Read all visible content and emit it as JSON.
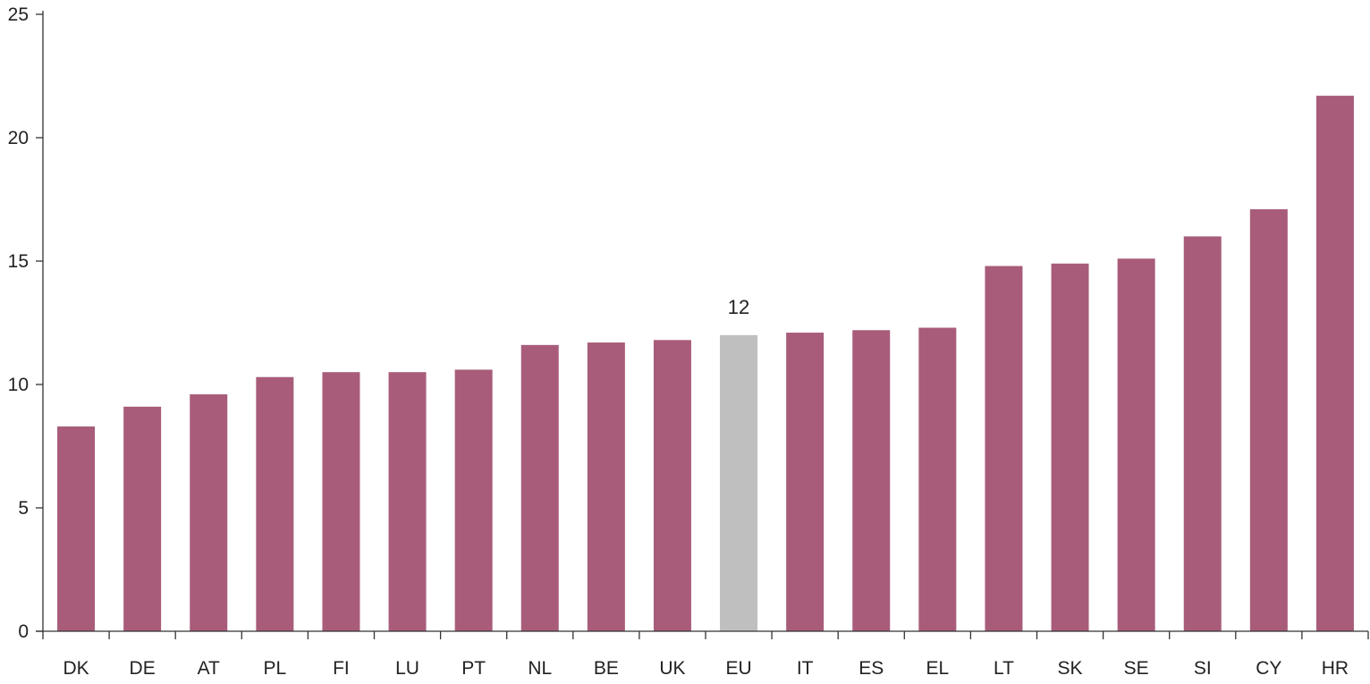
{
  "chart_data": {
    "type": "bar",
    "title": "",
    "xlabel": "",
    "ylabel": "",
    "categories": [
      "DK",
      "DE",
      "AT",
      "PL",
      "FI",
      "LU",
      "PT",
      "NL",
      "BE",
      "UK",
      "EU",
      "IT",
      "ES",
      "EL",
      "LT",
      "SK",
      "SE",
      "SI",
      "CY",
      "HR"
    ],
    "values": [
      8.3,
      9.1,
      9.6,
      10.3,
      10.5,
      10.5,
      10.6,
      11.6,
      11.7,
      11.8,
      12.0,
      12.1,
      12.2,
      12.3,
      14.8,
      14.9,
      15.1,
      16.0,
      17.1,
      21.7
    ],
    "highlight_category": "EU",
    "data_labels": [
      {
        "category": "EU",
        "text": "12"
      }
    ],
    "ylim": [
      0,
      25
    ],
    "yticks": [
      "0",
      "5",
      "10",
      "15",
      "20",
      "25"
    ],
    "grid": false,
    "colors": {
      "bar": "#a85c7a",
      "highlight": "#bfbfbf",
      "axis": "#333333",
      "text": "#222222"
    }
  }
}
